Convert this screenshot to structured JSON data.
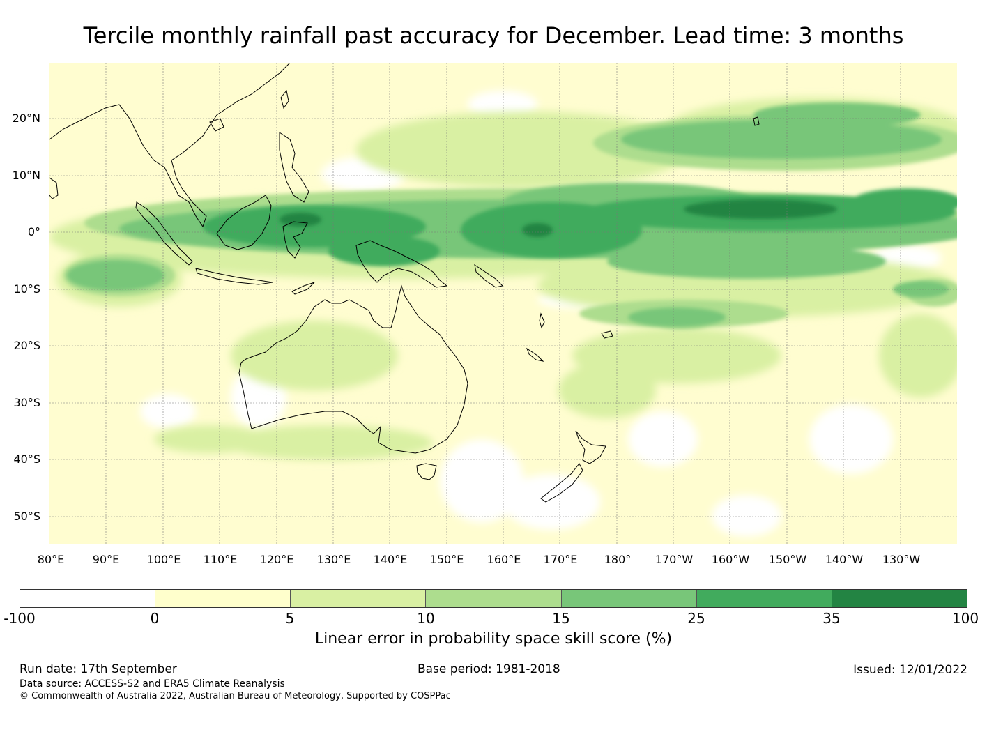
{
  "title": "Tercile monthly rainfall past accuracy for December. Lead time: 3 months",
  "axes": {
    "lat_labels": [
      "20°N",
      "10°N",
      "0°",
      "10°S",
      "20°S",
      "30°S",
      "40°S",
      "50°S"
    ],
    "lon_labels": [
      "80°E",
      "90°E",
      "100°E",
      "110°E",
      "120°E",
      "130°E",
      "140°E",
      "150°E",
      "160°E",
      "170°E",
      "180°",
      "170°W",
      "160°W",
      "150°W",
      "140°W",
      "130°W"
    ]
  },
  "colorbar": {
    "label": "Linear error in probability space skill score (%)",
    "ticks": [
      "-100",
      "0",
      "5",
      "10",
      "15",
      "25",
      "35",
      "100"
    ],
    "colors": [
      "#ffffff",
      "#ffffcc",
      "#d9f0a3",
      "#addd8e",
      "#78c679",
      "#41ab5d",
      "#238443"
    ]
  },
  "footer": {
    "run_date": "Run date: 17th September",
    "base_period": "Base period: 1981-2018",
    "issued": "Issued: 12/01/2022",
    "data_source": "Data source: ACCESS-S2 and ERA5 Climate Reanalysis",
    "copyright": "© Commonwealth of Australia 2022, Australian Bureau of Meteorology, Supported by COSPPac"
  }
}
